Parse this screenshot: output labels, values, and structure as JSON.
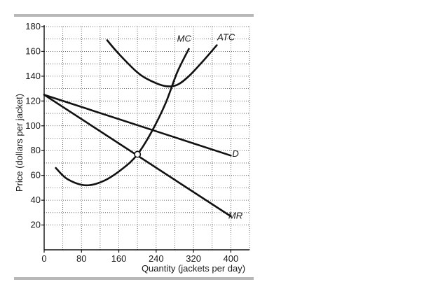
{
  "chart_data": {
    "type": "line",
    "title": "",
    "xlabel": "Quantity (jackets per day)",
    "ylabel": "Price (dollars per jacket)",
    "xlim": [
      0,
      440
    ],
    "ylim": [
      0,
      180
    ],
    "x_ticks": [
      {
        "value": 0,
        "label": "0"
      },
      {
        "value": 80,
        "label": "80"
      },
      {
        "value": 160,
        "label": "160"
      },
      {
        "value": 240,
        "label": "240"
      },
      {
        "value": 320,
        "label": "320"
      },
      {
        "value": 400,
        "label": "400"
      }
    ],
    "y_ticks": [
      {
        "value": 20,
        "label": "20"
      },
      {
        "value": 40,
        "label": "40"
      },
      {
        "value": 60,
        "label": "60"
      },
      {
        "value": 80,
        "label": "80"
      },
      {
        "value": 100,
        "label": "100"
      },
      {
        "value": 120,
        "label": "120"
      },
      {
        "value": 140,
        "label": "140"
      },
      {
        "value": 160,
        "label": "160"
      },
      {
        "value": 180,
        "label": "180"
      }
    ],
    "grid": true,
    "grid_style": "dotted",
    "series": [
      {
        "name": "D",
        "kind": "line",
        "points": [
          [
            0,
            125
          ],
          [
            400,
            76
          ]
        ]
      },
      {
        "name": "MR",
        "kind": "line",
        "points": [
          [
            0,
            125
          ],
          [
            400,
            27
          ]
        ]
      },
      {
        "name": "MC",
        "kind": "curve",
        "points": [
          [
            25,
            66
          ],
          [
            50,
            57
          ],
          [
            90,
            52
          ],
          [
            130,
            56
          ],
          [
            170,
            66
          ],
          [
            200,
            77
          ],
          [
            230,
            95
          ],
          [
            260,
            118
          ],
          [
            285,
            143
          ],
          [
            310,
            162
          ]
        ]
      },
      {
        "name": "ATC",
        "kind": "curve",
        "points": [
          [
            135,
            169
          ],
          [
            160,
            158
          ],
          [
            200,
            143
          ],
          [
            230,
            136
          ],
          [
            260,
            132
          ],
          [
            285,
            133
          ],
          [
            310,
            140
          ],
          [
            340,
            152
          ],
          [
            370,
            165
          ]
        ]
      }
    ],
    "highlight_point": {
      "x": 200,
      "y": 77
    },
    "annotations": [
      {
        "label": "MC",
        "x": 300,
        "y": 168
      },
      {
        "label": "ATC",
        "x": 390,
        "y": 169
      },
      {
        "label": "D",
        "x": 410,
        "y": 75
      },
      {
        "label": "MR",
        "x": 410,
        "y": 25
      }
    ]
  }
}
